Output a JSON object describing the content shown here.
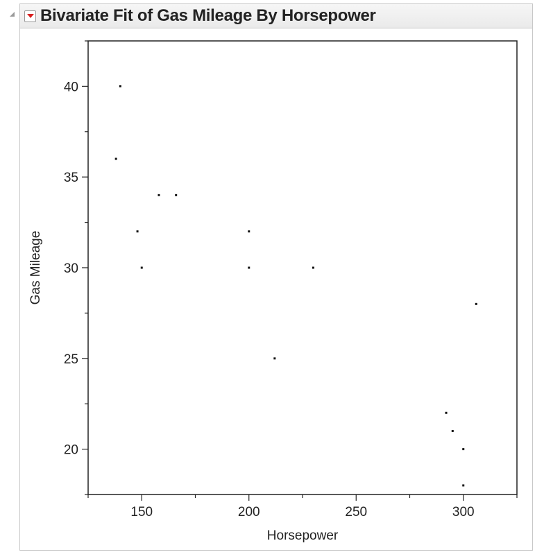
{
  "header": {
    "title": "Bivariate Fit of Gas Mileage By Horsepower"
  },
  "chart_data": {
    "type": "scatter",
    "title": "Bivariate Fit of Gas Mileage By Horsepower",
    "xlabel": "Horsepower",
    "ylabel": "Gas Mileage",
    "xlim": [
      125,
      325
    ],
    "ylim": [
      17.5,
      42.5
    ],
    "x_ticks": [
      150,
      200,
      250,
      300
    ],
    "y_ticks": [
      20,
      25,
      30,
      35,
      40
    ],
    "grid": false,
    "series": [
      {
        "x": [
          140,
          138,
          158,
          166,
          148,
          150,
          200,
          200,
          230,
          212,
          306,
          292,
          295,
          300,
          300
        ],
        "y": [
          40,
          36,
          34,
          34,
          32,
          30,
          32,
          30,
          30,
          25,
          28,
          22,
          21,
          20,
          18
        ]
      }
    ]
  }
}
